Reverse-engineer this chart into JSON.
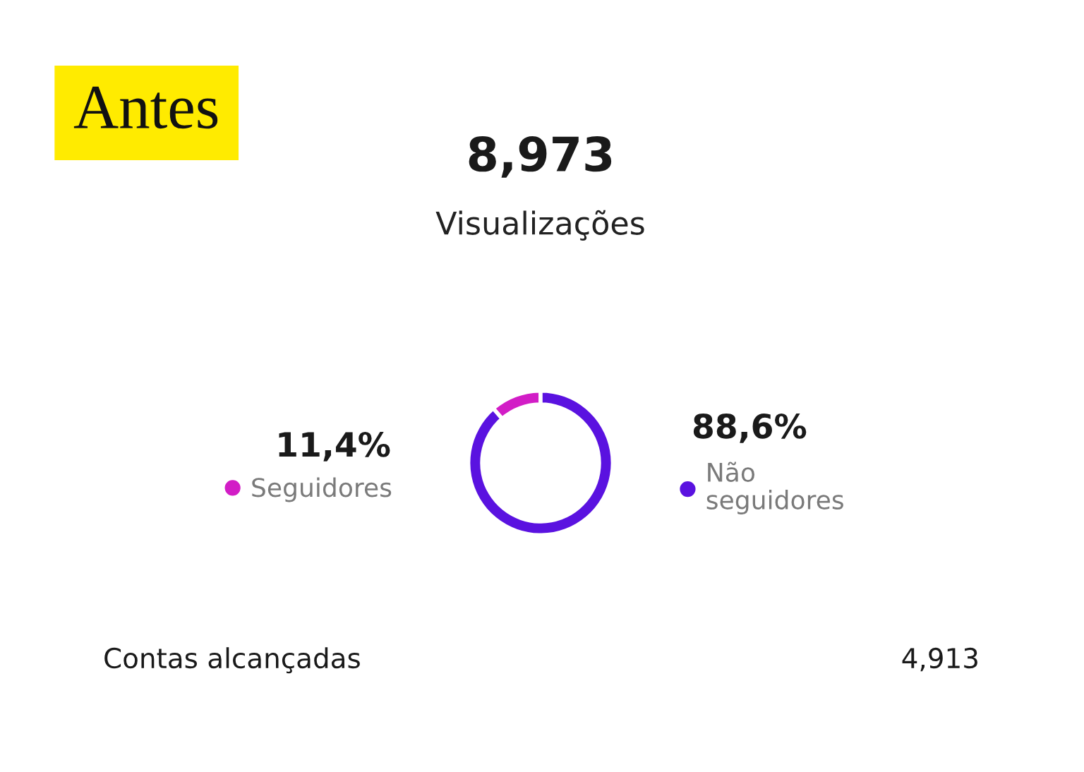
{
  "chart_data": {
    "type": "donut",
    "title": "8,973",
    "subtitle": "Visualizações",
    "categories": [
      "Seguidores",
      "Não seguidores"
    ],
    "values": [
      11.4,
      88.6
    ],
    "colors": [
      "#d21dc6",
      "#5a12e0"
    ],
    "value_labels": [
      "11,4%",
      "88,6%"
    ],
    "legend": "right",
    "annotations": [
      "Antes",
      "Contas alcançadas",
      "4,913"
    ]
  }
}
